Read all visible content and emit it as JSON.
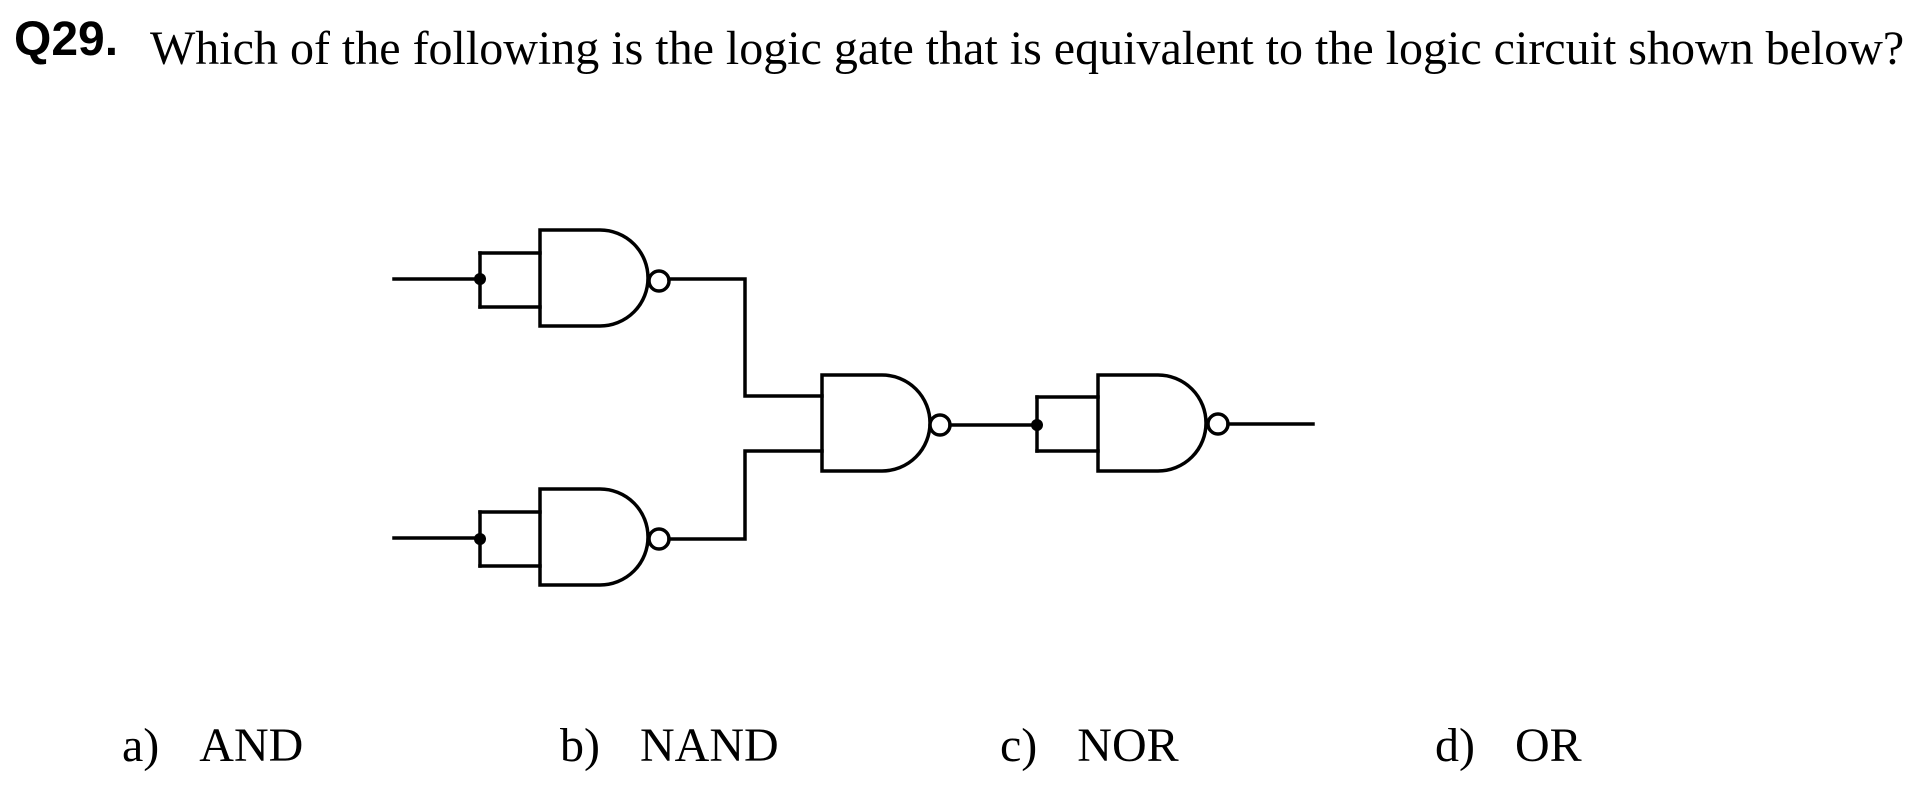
{
  "question": {
    "number": "Q29.",
    "text": "Which of the following is the logic gate that is equivalent to the logic circuit shown below?"
  },
  "options": [
    {
      "letter": "a)",
      "text": "AND"
    },
    {
      "letter": "b)",
      "text": "NAND"
    },
    {
      "letter": "c)",
      "text": "NOR"
    },
    {
      "letter": "d)",
      "text": "OR"
    }
  ],
  "circuit": {
    "gate_type": "NAND",
    "gate_count": 4,
    "stroke_color": "#000000"
  }
}
